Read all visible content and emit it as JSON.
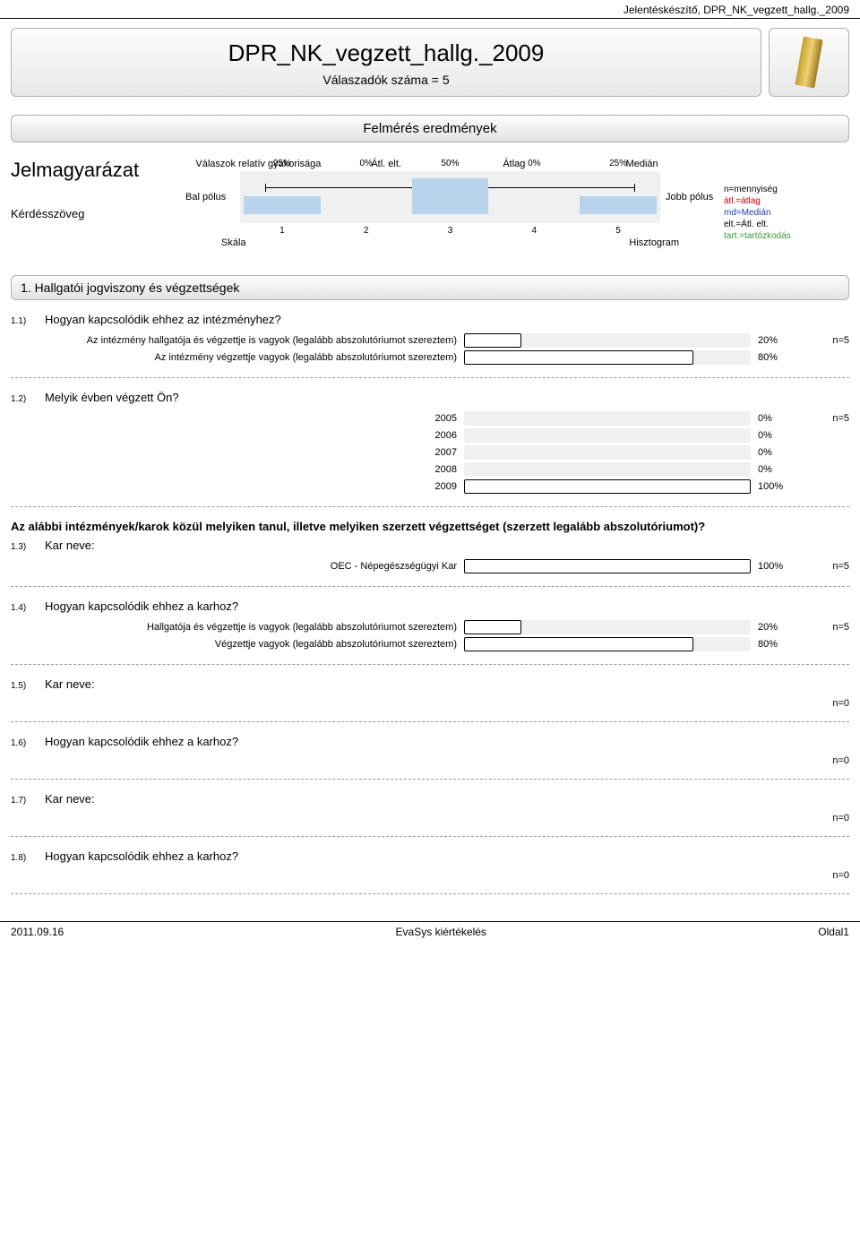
{
  "header": {
    "text": "Jelentéskészítő, DPR_NK_vegzett_hallg._2009"
  },
  "title": {
    "main": "DPR_NK_vegzett_hallg._2009",
    "sub": "Válaszadók száma = 5"
  },
  "section_results": "Felmérés eredmények",
  "legend": {
    "title": "Jelmagyarázat",
    "question_label": "Kérdésszöveg",
    "rel_freq": "Válaszok relatív gyakorisága",
    "avg_dev": "Átl. elt.",
    "avg": "Átlag",
    "median": "Medián",
    "left_pole": "Bal pólus",
    "right_pole": "Jobb pólus",
    "scale": "Skála",
    "histogram": "Hisztogram",
    "pcts": [
      "25%",
      "0%",
      "50%",
      "0%",
      "25%"
    ],
    "nums": [
      "1",
      "2",
      "3",
      "4",
      "5"
    ],
    "bar_heights_pct": [
      50,
      0,
      100,
      0,
      50
    ],
    "avg_marker_left_pct": 46,
    "med_marker_left_pct": 50,
    "lines": {
      "n": "n=mennyiség",
      "atl": "átl.=átlag",
      "md": "md=Medián",
      "elt": "elt.=Átl. elt.",
      "tart": "tart.=tartózkodás"
    }
  },
  "section1": {
    "title": "1. Hallgatói jogviszony és végzettségek"
  },
  "q": {
    "q11": {
      "num": "1.1)",
      "text": "Hogyan kapcsolódik ehhez az intézményhez?",
      "n": "n=5",
      "rows": [
        {
          "label": "Az intézmény hallgatója és végzettje is vagyok (legalább abszolutóriumot szereztem)",
          "val": "20%",
          "pct": 20
        },
        {
          "label": "Az intézmény végzettje vagyok (legalább abszolutóriumot szereztem)",
          "val": "80%",
          "pct": 80
        }
      ]
    },
    "q12": {
      "num": "1.2)",
      "text": "Melyik évben végzett Ön?",
      "n": "n=5",
      "rows": [
        {
          "label": "2005",
          "val": "0%",
          "pct": 0
        },
        {
          "label": "2006",
          "val": "0%",
          "pct": 0
        },
        {
          "label": "2007",
          "val": "0%",
          "pct": 0
        },
        {
          "label": "2008",
          "val": "0%",
          "pct": 0
        },
        {
          "label": "2009",
          "val": "100%",
          "pct": 100
        }
      ]
    },
    "boldq": "Az alábbi intézmények/karok közül melyiken tanul, illetve melyiken szerzett végzettséget (szerzett legalább abszolutóriumot)?",
    "q13": {
      "num": "1.3)",
      "text": "Kar neve:",
      "n": "n=5",
      "rows": [
        {
          "label": "OEC - Népegészségügyi Kar",
          "val": "100%",
          "pct": 100
        }
      ]
    },
    "q14": {
      "num": "1.4)",
      "text": "Hogyan kapcsolódik ehhez a karhoz?",
      "n": "n=5",
      "rows": [
        {
          "label": "Hallgatója és végzettje is vagyok (legalább abszolutóriumot szereztem)",
          "val": "20%",
          "pct": 20
        },
        {
          "label": "Végzettje vagyok (legalább abszolutóriumot szereztem)",
          "val": "80%",
          "pct": 80
        }
      ]
    },
    "q15": {
      "num": "1.5)",
      "text": "Kar neve:",
      "n": "n=0"
    },
    "q16": {
      "num": "1.6)",
      "text": "Hogyan kapcsolódik ehhez a karhoz?",
      "n": "n=0"
    },
    "q17": {
      "num": "1.7)",
      "text": "Kar neve:",
      "n": "n=0"
    },
    "q18": {
      "num": "1.8)",
      "text": "Hogyan kapcsolódik ehhez a karhoz?",
      "n": "n=0"
    }
  },
  "footer": {
    "left": "2011.09.16",
    "center": "EvaSys kiértékelés",
    "right": "Oldal1"
  },
  "colors": {
    "bar_bg": "#f0f0f0",
    "bar_fill": "#ffffff",
    "histo_bar": "#b8d4ec",
    "avg_marker": "#cc0000",
    "med_marker": "#0033aa"
  }
}
